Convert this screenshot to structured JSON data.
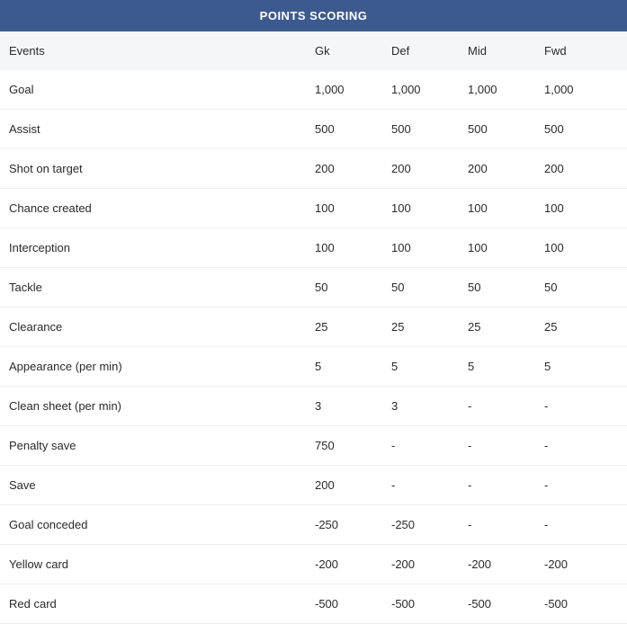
{
  "title": "POINTS SCORING",
  "columns": {
    "event": "Events",
    "gk": "Gk",
    "def": "Def",
    "mid": "Mid",
    "fwd": "Fwd"
  },
  "rows": [
    {
      "event": "Goal",
      "gk": "1,000",
      "def": "1,000",
      "mid": "1,000",
      "fwd": "1,000"
    },
    {
      "event": "Assist",
      "gk": "500",
      "def": "500",
      "mid": "500",
      "fwd": "500"
    },
    {
      "event": "Shot on target",
      "gk": "200",
      "def": "200",
      "mid": "200",
      "fwd": "200"
    },
    {
      "event": "Chance created",
      "gk": "100",
      "def": "100",
      "mid": "100",
      "fwd": "100"
    },
    {
      "event": "Interception",
      "gk": "100",
      "def": "100",
      "mid": "100",
      "fwd": "100"
    },
    {
      "event": "Tackle",
      "gk": "50",
      "def": "50",
      "mid": "50",
      "fwd": "50"
    },
    {
      "event": "Clearance",
      "gk": "25",
      "def": "25",
      "mid": "25",
      "fwd": "25"
    },
    {
      "event": "Appearance (per min)",
      "gk": "5",
      "def": "5",
      "mid": "5",
      "fwd": "5"
    },
    {
      "event": "Clean sheet (per min)",
      "gk": "3",
      "def": "3",
      "mid": "-",
      "fwd": "-"
    },
    {
      "event": "Penalty save",
      "gk": "750",
      "def": "-",
      "mid": "-",
      "fwd": "-"
    },
    {
      "event": "Save",
      "gk": "200",
      "def": "-",
      "mid": "-",
      "fwd": "-"
    },
    {
      "event": "Goal conceded",
      "gk": "-250",
      "def": "-250",
      "mid": "-",
      "fwd": "-"
    },
    {
      "event": "Yellow card",
      "gk": "-200",
      "def": "-200",
      "mid": "-200",
      "fwd": "-200"
    },
    {
      "event": "Red card",
      "gk": "-500",
      "def": "-500",
      "mid": "-500",
      "fwd": "-500"
    }
  ],
  "style": {
    "title_bg": "#3d5a8f",
    "title_color": "#ffffff",
    "header_bg": "#f5f6f7",
    "row_bg": "#ffffff",
    "border_color": "#f0f0f0",
    "text_color": "#2a2a2a",
    "font_size": 13
  }
}
